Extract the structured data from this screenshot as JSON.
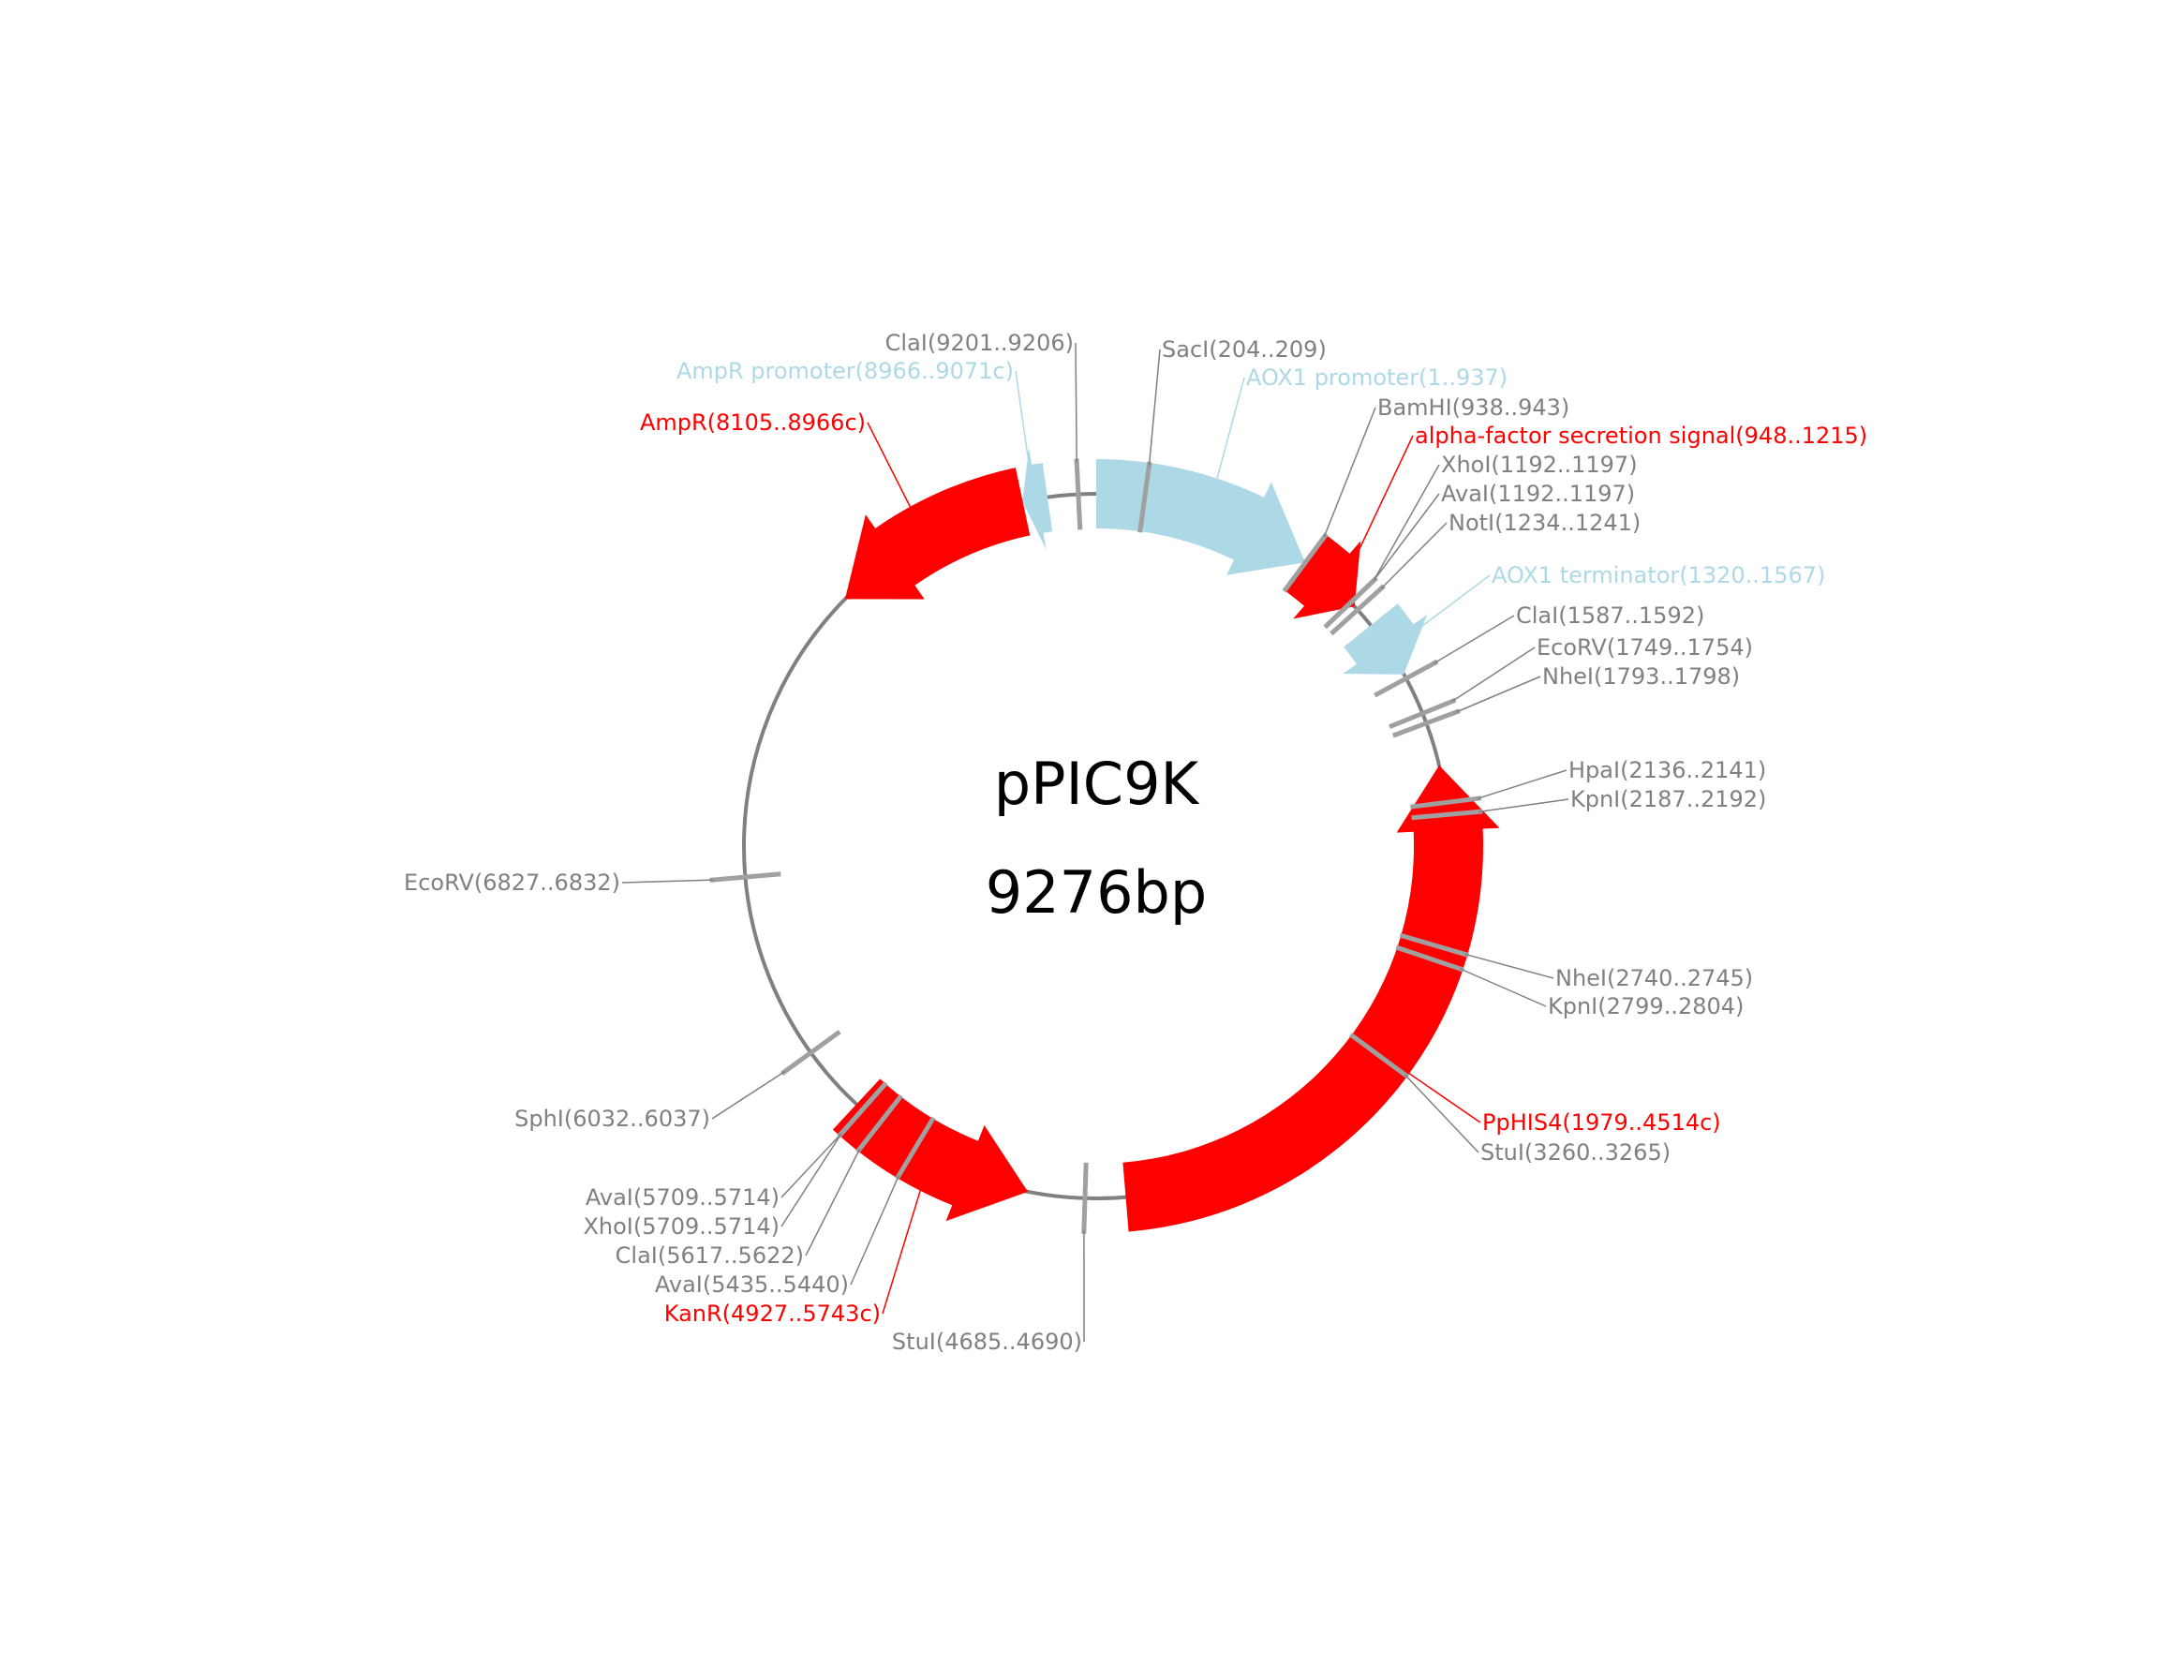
{
  "plasmid": {
    "name": "pPIC9K",
    "length_label": "9276bp",
    "length_bp": 9276
  },
  "colors": {
    "backbone": "#808080",
    "site": "#a0a0a0",
    "site_label": "#808080",
    "red_feature": "#ff0000",
    "blue_feature": "#add8e6"
  },
  "features": [
    {
      "label": "AOX1 promoter(1..937)",
      "start": 1,
      "end": 937,
      "strand": 1,
      "color": "#add8e6",
      "text_color": "#add8e6"
    },
    {
      "label": "alpha-factor secretion signal(948..1215)",
      "start": 948,
      "end": 1215,
      "strand": 1,
      "color": "#ff0000",
      "text_color": "#ff0000"
    },
    {
      "label": "AOX1 terminator(1320..1567)",
      "start": 1320,
      "end": 1567,
      "strand": 1,
      "color": "#add8e6",
      "text_color": "#add8e6"
    },
    {
      "label": "PpHIS4(1979..4514c)",
      "start": 1979,
      "end": 4514,
      "strand": -1,
      "color": "#ff0000",
      "text_color": "#ff0000"
    },
    {
      "label": "KanR(4927..5743c)",
      "start": 4927,
      "end": 5743,
      "strand": -1,
      "color": "#ff0000",
      "text_color": "#ff0000"
    },
    {
      "label": "AmpR(8105..8966c)",
      "start": 8105,
      "end": 8966,
      "strand": -1,
      "color": "#ff0000",
      "text_color": "#ff0000"
    },
    {
      "label": "AmpR promoter(8966..9071c)",
      "start": 8966,
      "end": 9071,
      "strand": -1,
      "color": "#add8e6",
      "text_color": "#add8e6"
    }
  ],
  "sites": [
    {
      "label": "SacI(204..209)",
      "pos": 204
    },
    {
      "label": "BamHI(938..943)",
      "pos": 938
    },
    {
      "label": "XhoI(1192..1197)",
      "pos": 1192
    },
    {
      "label": "AvaI(1192..1197)",
      "pos": 1192
    },
    {
      "label": "NotI(1234..1241)",
      "pos": 1234
    },
    {
      "label": "ClaI(1587..1592)",
      "pos": 1587
    },
    {
      "label": "EcoRV(1749..1754)",
      "pos": 1749
    },
    {
      "label": "NheI(1793..1798)",
      "pos": 1793
    },
    {
      "label": "HpaI(2136..2141)",
      "pos": 2136
    },
    {
      "label": "KpnI(2187..2192)",
      "pos": 2187
    },
    {
      "label": "NheI(2740..2745)",
      "pos": 2740
    },
    {
      "label": "KpnI(2799..2804)",
      "pos": 2799
    },
    {
      "label": "StuI(3260..3265)",
      "pos": 3260
    },
    {
      "label": "StuI(4685..4690)",
      "pos": 4685
    },
    {
      "label": "AvaI(5435..5440)",
      "pos": 5435
    },
    {
      "label": "ClaI(5617..5622)",
      "pos": 5617
    },
    {
      "label": "XhoI(5709..5714)",
      "pos": 5709
    },
    {
      "label": "AvaI(5709..5714)",
      "pos": 5709
    },
    {
      "label": "SphI(6032..6037)",
      "pos": 6032
    },
    {
      "label": "EcoRV(6827..6832)",
      "pos": 6827
    },
    {
      "label": "ClaI(9201..9206)",
      "pos": 9201
    }
  ]
}
